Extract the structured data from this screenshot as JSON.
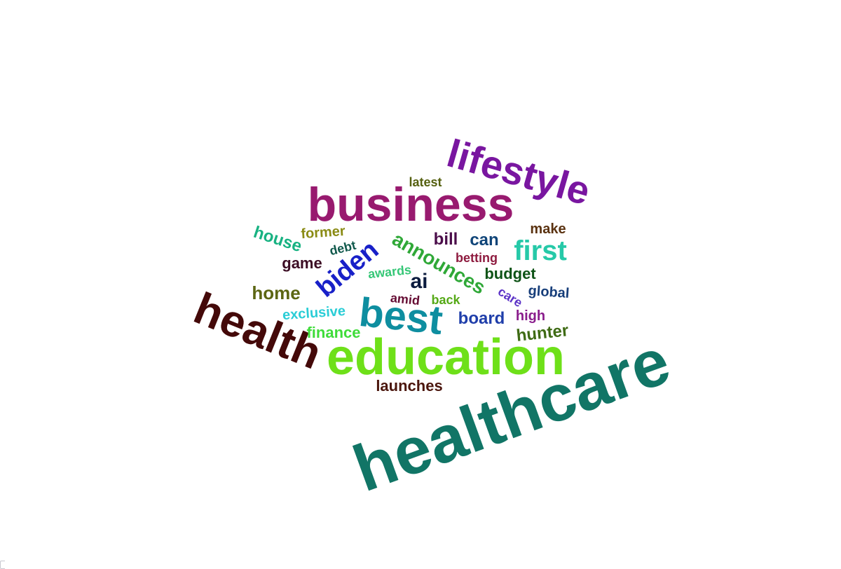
{
  "words": [
    {
      "text": "healthcare",
      "color": "#117566"
    },
    {
      "text": "education",
      "color": "#6ee019"
    },
    {
      "text": "business",
      "color": "#981a6f"
    },
    {
      "text": "health",
      "color": "#440909"
    },
    {
      "text": "lifestyle",
      "color": "#7916a0"
    },
    {
      "text": "best",
      "color": "#0e8ea0"
    },
    {
      "text": "biden",
      "color": "#1820c8"
    },
    {
      "text": "announces",
      "color": "#2fa837"
    },
    {
      "text": "first",
      "color": "#26c9a8"
    },
    {
      "text": "ai",
      "color": "#0b1b3e"
    },
    {
      "text": "house",
      "color": "#18b282"
    },
    {
      "text": "home",
      "color": "#5c6613"
    },
    {
      "text": "launches",
      "color": "#4b160d"
    },
    {
      "text": "hunter",
      "color": "#3f6b15"
    },
    {
      "text": "board",
      "color": "#1f3eaa"
    },
    {
      "text": "finance",
      "color": "#3fdc3a"
    },
    {
      "text": "exclusive",
      "color": "#2acdd6"
    },
    {
      "text": "budget",
      "color": "#0e5316"
    },
    {
      "text": "game",
      "color": "#3c0d24"
    },
    {
      "text": "can",
      "color": "#0f4478"
    },
    {
      "text": "bill",
      "color": "#4b0d4a"
    },
    {
      "text": "former",
      "color": "#8a8b14"
    },
    {
      "text": "make",
      "color": "#5a3210"
    },
    {
      "text": "betting",
      "color": "#8e1b3f"
    },
    {
      "text": "global",
      "color": "#173e7a"
    },
    {
      "text": "high",
      "color": "#8a1d8c"
    },
    {
      "text": "awards",
      "color": "#36c777"
    },
    {
      "text": "amid",
      "color": "#650c33"
    },
    {
      "text": "back",
      "color": "#55a916"
    },
    {
      "text": "debt",
      "color": "#10594c"
    },
    {
      "text": "care",
      "color": "#5c33c7"
    },
    {
      "text": "latest",
      "color": "#556010"
    }
  ]
}
